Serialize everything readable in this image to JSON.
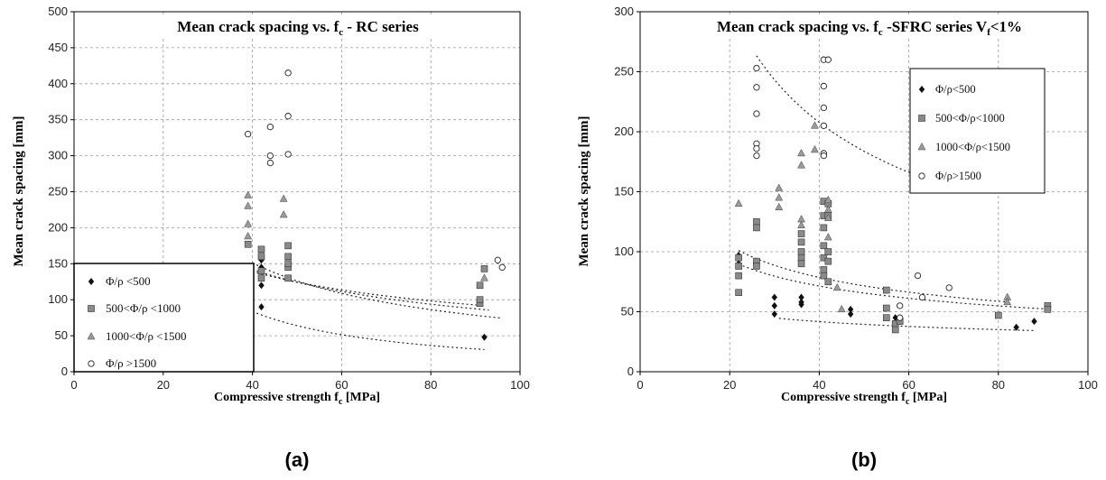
{
  "charts": [
    {
      "id": "a",
      "panel_label": "(a)",
      "title_prefix": "Mean crack spacing vs. f",
      "title_sub": "c",
      "title_suffix": " - RC series",
      "ylabel": "Mean crack spacing [mm]",
      "xlabel_prefix": "Compressive strength f",
      "xlabel_sub": "c",
      "xlabel_suffix": " [MPa]",
      "legend": [
        {
          "marker": "diamond",
          "label": "Φ/ρ <500"
        },
        {
          "marker": "square",
          "label": "500<Φ/ρ <1000"
        },
        {
          "marker": "triangle",
          "label": "1000<Φ/ρ <1500"
        },
        {
          "marker": "circle",
          "label": "Φ/ρ >1500"
        }
      ]
    },
    {
      "id": "b",
      "panel_label": "(b)",
      "title_prefix": "Mean crack spacing vs. f",
      "title_sub": "c",
      "title_suffix": " -SFRC series V",
      "title_sub2": "f",
      "title_tail": "<1%",
      "ylabel": "Mean crack spacing [mm]",
      "xlabel_prefix": "Compressive strength f",
      "xlabel_sub": "c",
      "xlabel_suffix": " [MPa]",
      "legend": [
        {
          "marker": "diamond",
          "label": "Φ/ρ<500"
        },
        {
          "marker": "square",
          "label": "500<Φ/ρ<1000"
        },
        {
          "marker": "triangle",
          "label": "1000<Φ/ρ<1500"
        },
        {
          "marker": "circle",
          "label": "Φ/ρ>1500"
        }
      ]
    }
  ],
  "chart_data": [
    {
      "type": "scatter",
      "title": "Mean crack spacing vs. fc - RC series",
      "xlabel": "Compressive strength fc [MPa]",
      "ylabel": "Mean crack spacing [mm]",
      "xlim": [
        0,
        100
      ],
      "ylim": [
        0,
        500
      ],
      "xticks": [
        0,
        20,
        40,
        60,
        80,
        100
      ],
      "yticks": [
        0,
        50,
        100,
        150,
        200,
        250,
        300,
        350,
        400,
        450,
        500
      ],
      "grid": true,
      "legend_position": "bottom-left",
      "series": [
        {
          "name": "Φ/ρ <500",
          "marker": "diamond",
          "points": [
            [
              42,
              90
            ],
            [
              42,
              120
            ],
            [
              42,
              145
            ],
            [
              42,
              155
            ],
            [
              92,
              48
            ]
          ],
          "trend": {
            "a": 7000,
            "b": -1.2,
            "x0": 40,
            "x1": 92
          }
        },
        {
          "name": "500<Φ/ρ <1000",
          "marker": "square",
          "points": [
            [
              39,
              177
            ],
            [
              42,
              130
            ],
            [
              42,
              140
            ],
            [
              42,
              160
            ],
            [
              42,
              170
            ],
            [
              48,
              130
            ],
            [
              48,
              145
            ],
            [
              48,
              150
            ],
            [
              48,
              160
            ],
            [
              48,
              175
            ],
            [
              91,
              95
            ],
            [
              91,
              100
            ],
            [
              91,
              120
            ],
            [
              92,
              143
            ]
          ],
          "trend": {
            "a": 880,
            "b": -0.5,
            "x0": 40,
            "x1": 92
          }
        },
        {
          "name": "1000<Φ/ρ <1500",
          "marker": "triangle",
          "points": [
            [
              39,
              245
            ],
            [
              39,
              230
            ],
            [
              39,
              205
            ],
            [
              39,
              188
            ],
            [
              47,
              240
            ],
            [
              47,
              218
            ],
            [
              92,
              130
            ]
          ],
          "trend": {
            "a": 1300,
            "b": -0.6,
            "x0": 40,
            "x1": 93
          }
        },
        {
          "name": "Φ/ρ >1500",
          "marker": "circle",
          "points": [
            [
              39,
              330
            ],
            [
              44,
              340
            ],
            [
              44,
              300
            ],
            [
              44,
              290
            ],
            [
              48,
              415
            ],
            [
              48,
              355
            ],
            [
              48,
              302
            ],
            [
              95,
              155
            ],
            [
              96,
              145
            ]
          ],
          "trend": {
            "a": 3000,
            "b": -0.81,
            "x0": 40,
            "x1": 96
          }
        }
      ]
    },
    {
      "type": "scatter",
      "title": "Mean crack spacing vs. fc -SFRC series Vf<1%",
      "xlabel": "Compressive strength fc [MPa]",
      "ylabel": "Mean crack spacing [mm]",
      "xlim": [
        0,
        100
      ],
      "ylim": [
        0,
        300
      ],
      "xticks": [
        0,
        20,
        40,
        60,
        80,
        100
      ],
      "yticks": [
        0,
        50,
        100,
        150,
        200,
        250,
        300
      ],
      "grid": true,
      "legend_position": "top-right",
      "series": [
        {
          "name": "Φ/ρ<500",
          "marker": "diamond",
          "points": [
            [
              22,
              97
            ],
            [
              22,
              90
            ],
            [
              30,
              62
            ],
            [
              30,
              55
            ],
            [
              30,
              48
            ],
            [
              36,
              62
            ],
            [
              36,
              58
            ],
            [
              36,
              56
            ],
            [
              47,
              52
            ],
            [
              47,
              48
            ],
            [
              57,
              45
            ],
            [
              57,
              40
            ],
            [
              84,
              37
            ],
            [
              88,
              42
            ]
          ],
          "trend": {
            "a": 105,
            "b": -0.25,
            "x0": 31,
            "x1": 88
          }
        },
        {
          "name": "500<Φ/ρ<1000",
          "marker": "square",
          "points": [
            [
              22,
              95
            ],
            [
              22,
              88
            ],
            [
              22,
              80
            ],
            [
              22,
              66
            ],
            [
              26,
              125
            ],
            [
              26,
              120
            ],
            [
              26,
              92
            ],
            [
              26,
              88
            ],
            [
              36,
              115
            ],
            [
              36,
              108
            ],
            [
              36,
              100
            ],
            [
              36,
              95
            ],
            [
              36,
              90
            ],
            [
              41,
              142
            ],
            [
              41,
              130
            ],
            [
              41,
              120
            ],
            [
              41,
              105
            ],
            [
              41,
              95
            ],
            [
              41,
              85
            ],
            [
              41,
              80
            ],
            [
              42,
              140
            ],
            [
              42,
              130
            ],
            [
              42,
              100
            ],
            [
              42,
              92
            ],
            [
              42,
              75
            ],
            [
              55,
              68
            ],
            [
              55,
              53
            ],
            [
              55,
              45
            ],
            [
              57,
              40
            ],
            [
              57,
              35
            ],
            [
              58,
              42
            ],
            [
              80,
              47
            ],
            [
              91,
              55
            ],
            [
              91,
              52
            ]
          ],
          "trend": {
            "a": 290,
            "b": -0.38,
            "x0": 22,
            "x1": 91
          }
        },
        {
          "name": "1000<Φ/ρ<1500",
          "marker": "triangle",
          "points": [
            [
              22,
              140
            ],
            [
              31,
              153
            ],
            [
              31,
              145
            ],
            [
              31,
              137
            ],
            [
              36,
              182
            ],
            [
              36,
              172
            ],
            [
              36,
              127
            ],
            [
              36,
              122
            ],
            [
              39,
              205
            ],
            [
              39,
              185
            ],
            [
              42,
              143
            ],
            [
              42,
              135
            ],
            [
              42,
              128
            ],
            [
              42,
              112
            ],
            [
              44,
              70
            ],
            [
              45,
              52
            ],
            [
              82,
              62
            ],
            [
              82,
              58
            ]
          ],
          "trend": {
            "a": 370,
            "b": -0.42,
            "x0": 22,
            "x1": 82
          }
        },
        {
          "name": "Φ/ρ>1500",
          "marker": "circle",
          "points": [
            [
              26,
              253
            ],
            [
              26,
              237
            ],
            [
              26,
              215
            ],
            [
              26,
              190
            ],
            [
              26,
              186
            ],
            [
              26,
              180
            ],
            [
              41,
              260
            ],
            [
              41,
              238
            ],
            [
              41,
              220
            ],
            [
              41,
              205
            ],
            [
              41,
              182
            ],
            [
              41,
              180
            ],
            [
              42,
              260
            ],
            [
              58,
              55
            ],
            [
              58,
              45
            ],
            [
              62,
              80
            ],
            [
              63,
              62
            ],
            [
              69,
              70
            ]
          ],
          "trend": {
            "a": 1580,
            "b": -0.55,
            "x0": 26,
            "x1": 70
          }
        }
      ]
    }
  ]
}
